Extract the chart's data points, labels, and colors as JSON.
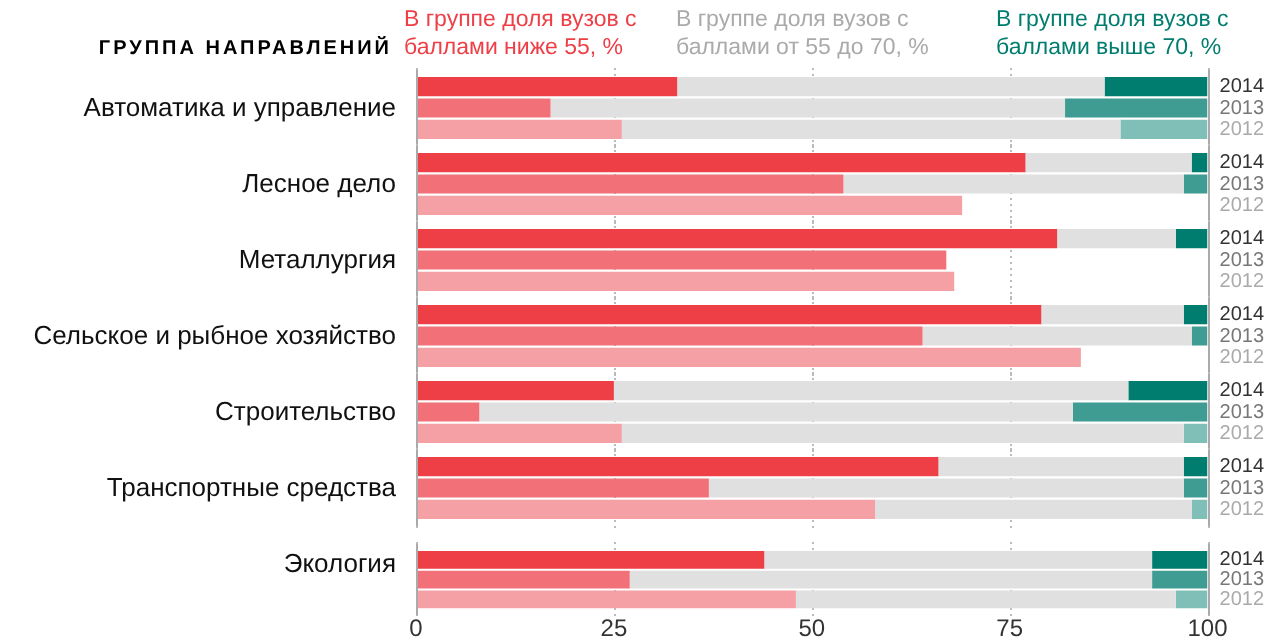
{
  "chart_data": [
    {
      "type": "bar",
      "orientation": "horizontal",
      "stacked": true,
      "title": "Автоматика и управление",
      "legend": "top",
      "legend_title": "ГРУППА НАПРАВЛЕНИЙ",
      "categories": [
        "2014",
        "2013",
        "2012"
      ],
      "xlim": [
        0,
        100
      ],
      "xticks": [
        0,
        25,
        50,
        75,
        100
      ],
      "grid": "x",
      "tick_labels": "y",
      "series": [
        {
          "name": "В группе доля вузов с баллами ниже 55, %",
          "color": "#ee3e46",
          "colors": [
            "#ee3e46",
            "#f27077",
            "#f5a0a4"
          ],
          "values": [
            33,
            17,
            26
          ]
        },
        {
          "name": "В группе доля вузов с баллами от 55 до 70, %",
          "color": "#aaaaaa",
          "colors": [
            "#e0e0e0",
            "#e0e0e0",
            "#e0e0e0"
          ],
          "values": [
            54,
            65,
            63
          ]
        },
        {
          "name": "В группе доля вузов с баллами выше 70, %",
          "color": "#007d6e",
          "colors": [
            "#007d6e",
            "#3f9c92",
            "#80bfb7"
          ],
          "values": [
            13,
            18,
            11
          ]
        }
      ]
    },
    {
      "type": "bar",
      "orientation": "horizontal",
      "stacked": true,
      "title": "Лесное дело",
      "categories": [
        "2014",
        "2013",
        "2012"
      ],
      "xlim": [
        0,
        100
      ],
      "xticks": [
        0,
        25,
        50,
        75,
        100
      ],
      "grid": "x",
      "tick_labels": "y",
      "series": [
        {
          "colors": [
            "#ee3e46",
            "#f27077",
            "#f5a0a4"
          ],
          "values": [
            77,
            54,
            69
          ]
        },
        {
          "colors": [
            "#e0e0e0",
            "#e0e0e0",
            "#e0e0e0"
          ],
          "values": [
            21,
            43,
            null
          ]
        },
        {
          "colors": [
            "#007d6e",
            "#3f9c92",
            "#80bfb7"
          ],
          "values": [
            2,
            3,
            null
          ]
        }
      ]
    },
    {
      "type": "bar",
      "orientation": "horizontal",
      "stacked": true,
      "title": "Металлургия",
      "categories": [
        "2014",
        "2013",
        "2012"
      ],
      "xlim": [
        0,
        100
      ],
      "xticks": [
        0,
        25,
        50,
        75,
        100
      ],
      "grid": "x",
      "tick_labels": "y",
      "series": [
        {
          "colors": [
            "#ee3e46",
            "#f27077",
            "#f5a0a4"
          ],
          "values": [
            81,
            67,
            68
          ]
        },
        {
          "colors": [
            "#e0e0e0",
            "#e0e0e0",
            "#e0e0e0"
          ],
          "values": [
            15,
            null,
            null
          ]
        },
        {
          "colors": [
            "#007d6e",
            "#3f9c92",
            "#80bfb7"
          ],
          "values": [
            4,
            null,
            null
          ]
        }
      ]
    },
    {
      "type": "bar",
      "orientation": "horizontal",
      "stacked": true,
      "title": "Сельское и рыбное хозяйство",
      "categories": [
        "2014",
        "2013",
        "2012"
      ],
      "xlim": [
        0,
        100
      ],
      "xticks": [
        0,
        25,
        50,
        75,
        100
      ],
      "grid": "x",
      "tick_labels": "y",
      "series": [
        {
          "colors": [
            "#ee3e46",
            "#f27077",
            "#f5a0a4"
          ],
          "values": [
            79,
            64,
            84
          ]
        },
        {
          "colors": [
            "#e0e0e0",
            "#e0e0e0",
            "#e0e0e0"
          ],
          "values": [
            18,
            34,
            null
          ]
        },
        {
          "colors": [
            "#007d6e",
            "#3f9c92",
            "#80bfb7"
          ],
          "values": [
            3,
            2,
            null
          ]
        }
      ]
    },
    {
      "type": "bar",
      "orientation": "horizontal",
      "stacked": true,
      "title": "Строительство",
      "categories": [
        "2014",
        "2013",
        "2012"
      ],
      "xlim": [
        0,
        100
      ],
      "xticks": [
        0,
        25,
        50,
        75,
        100
      ],
      "grid": "x",
      "tick_labels": "y",
      "series": [
        {
          "colors": [
            "#ee3e46",
            "#f27077",
            "#f5a0a4"
          ],
          "values": [
            25,
            8,
            26
          ]
        },
        {
          "colors": [
            "#e0e0e0",
            "#e0e0e0",
            "#e0e0e0"
          ],
          "values": [
            65,
            75,
            71
          ]
        },
        {
          "colors": [
            "#007d6e",
            "#3f9c92",
            "#80bfb7"
          ],
          "values": [
            10,
            17,
            3
          ]
        }
      ]
    },
    {
      "type": "bar",
      "orientation": "horizontal",
      "stacked": true,
      "title": "Транспортные средства",
      "categories": [
        "2014",
        "2013",
        "2012"
      ],
      "xlim": [
        0,
        100
      ],
      "xticks": [
        0,
        25,
        50,
        75,
        100
      ],
      "grid": "x",
      "tick_labels": "y",
      "series": [
        {
          "colors": [
            "#ee3e46",
            "#f27077",
            "#f5a0a4"
          ],
          "values": [
            66,
            37,
            58
          ]
        },
        {
          "colors": [
            "#e0e0e0",
            "#e0e0e0",
            "#e0e0e0"
          ],
          "values": [
            31,
            60,
            40
          ]
        },
        {
          "colors": [
            "#007d6e",
            "#3f9c92",
            "#80bfb7"
          ],
          "values": [
            3,
            3,
            2
          ]
        }
      ]
    },
    {
      "type": "bar",
      "orientation": "horizontal",
      "stacked": true,
      "title": "Экология",
      "categories": [
        "2014",
        "2013",
        "2012"
      ],
      "xlim": [
        0,
        100
      ],
      "xticks": [
        0,
        25,
        50,
        75,
        100
      ],
      "grid": "x",
      "series": [
        {
          "colors": [
            "#ee3e46",
            "#f27077",
            "#f5a0a4"
          ],
          "values": [
            44,
            27,
            48
          ]
        },
        {
          "colors": [
            "#e0e0e0",
            "#e0e0e0",
            "#e0e0e0"
          ],
          "values": [
            49,
            66,
            48
          ]
        },
        {
          "colors": [
            "#007d6e",
            "#3f9c92",
            "#80bfb7"
          ],
          "values": [
            7,
            7,
            4
          ]
        }
      ]
    }
  ]
}
